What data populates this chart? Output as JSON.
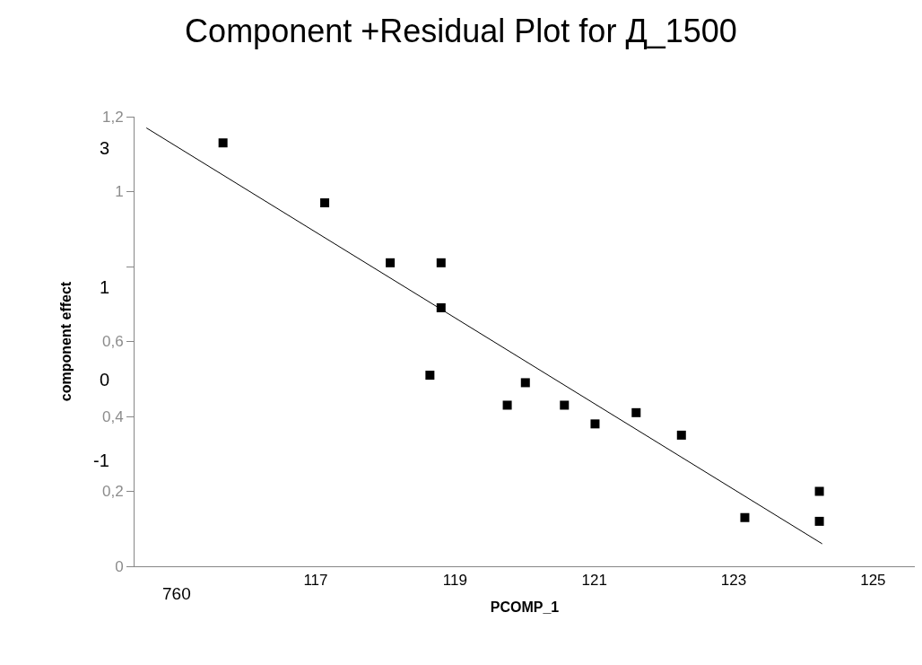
{
  "chart_data": {
    "type": "scatter",
    "title": "Component +Residual Plot for Д_1500",
    "xlabel": "PCOMP_1",
    "ylabel": "component effect",
    "xlim": [
      114.4,
      125.6
    ],
    "xticks": [
      117,
      119,
      121,
      123,
      125
    ],
    "ylim": [
      0,
      1.2
    ],
    "yticks": [
      0,
      {
        "value": 0.2,
        "label": "0,2"
      },
      {
        "value": 0.4,
        "label": "0,4"
      },
      {
        "value": 0.6,
        "label": "0,6"
      },
      {
        "value": 0.8,
        "label": null
      },
      1,
      {
        "value": 1.2,
        "label": "1,2"
      }
    ],
    "grid": false,
    "marker": "square",
    "legend": false,
    "series": [
      {
        "color": "#000000",
        "x": [
          115.67,
          117.13,
          118.07,
          118.8,
          118.8,
          118.64,
          119.75,
          120.01,
          120.57,
          121.01,
          121.6,
          122.25,
          123.16,
          124.23,
          124.23
        ],
        "values": [
          1.13,
          0.97,
          0.81,
          0.81,
          0.69,
          0.51,
          0.43,
          0.49,
          0.43,
          0.38,
          0.41,
          0.35,
          0.13,
          0.2,
          0.12
        ]
      },
      {
        "type": "line",
        "marker": "none",
        "color": "#000000",
        "x": [
          114.57,
          124.27
        ],
        "values": [
          1.17,
          0.06
        ]
      }
    ],
    "annotations": [
      "760",
      "3",
      "1",
      "0",
      "-1"
    ]
  }
}
